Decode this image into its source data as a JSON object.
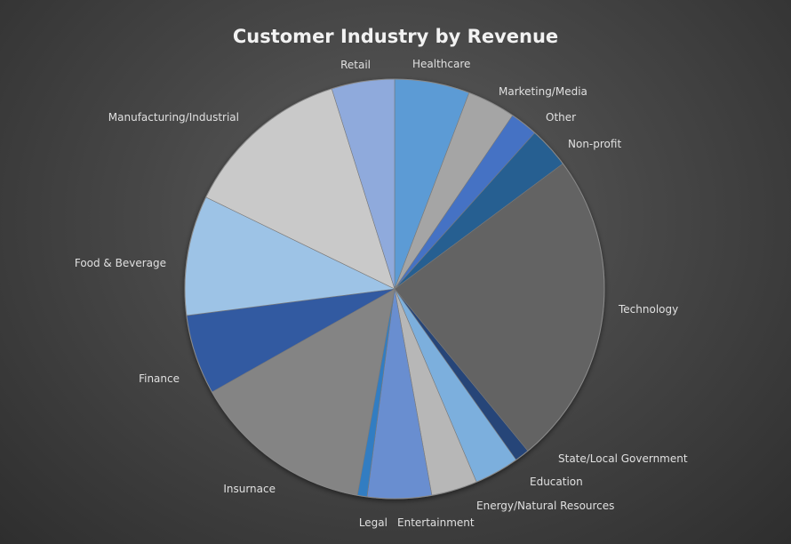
{
  "chart_data": {
    "type": "pie",
    "title": "Customer Industry by Revenue",
    "start_angle_deg": 0,
    "direction": "clockwise",
    "legend": "none",
    "slices": [
      {
        "label": "Healthcare",
        "value": 6.2,
        "color": "#5b9bd5"
      },
      {
        "label": "Marketing/Media",
        "value": 4.0,
        "color": "#a5a5a5"
      },
      {
        "label": "Other",
        "value": 2.3,
        "color": "#4472c4"
      },
      {
        "label": "Non-profit",
        "value": 3.4,
        "color": "#255e91"
      },
      {
        "label": "Technology",
        "value": 26.0,
        "color": "#636363"
      },
      {
        "label": "State/Local Government",
        "value": 1.2,
        "color": "#264478"
      },
      {
        "label": "Education",
        "value": 3.7,
        "color": "#7cafdd"
      },
      {
        "label": "Energy/Natural Resources",
        "value": 3.8,
        "color": "#b7b7b7"
      },
      {
        "label": "Entertainment",
        "value": 5.3,
        "color": "#698ed0"
      },
      {
        "label": "Legal",
        "value": 0.8,
        "color": "#327dc2"
      },
      {
        "label": "Insurnace",
        "value": 15.0,
        "color": "#848484"
      },
      {
        "label": "Finance",
        "value": 6.6,
        "color": "#335aa1"
      },
      {
        "label": "Food & Beverage",
        "value": 9.9,
        "color": "#9dc3e6"
      },
      {
        "label": "Manufacturing/Industrial",
        "value": 13.9,
        "color": "#c9c9c9"
      },
      {
        "label": "Retail",
        "value": 5.2,
        "color": "#8faadc"
      }
    ]
  }
}
